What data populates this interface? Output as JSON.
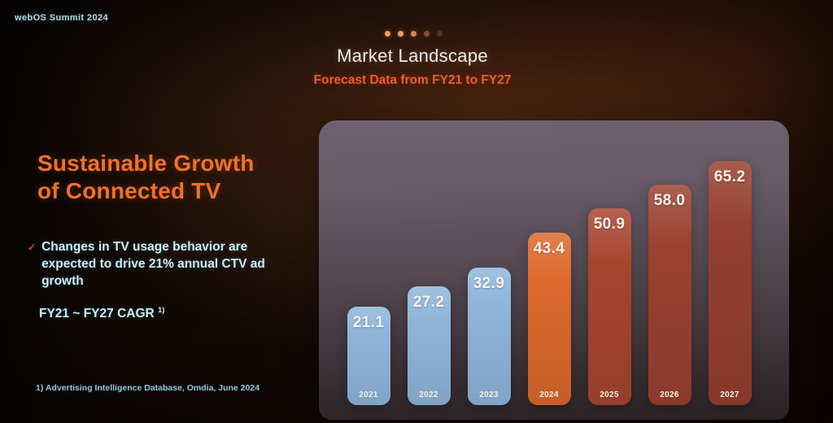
{
  "brand": "webOS Summit 2024",
  "header": {
    "title": "Market Landscape",
    "subtitle": "Forecast Data from FY21 to FY27",
    "dots": [
      1,
      1,
      0.85,
      0.45,
      0.22
    ]
  },
  "left": {
    "title_line1": "Sustainable Growth",
    "title_line2": "of Connected TV",
    "check_icon": "✓",
    "bullet_text": "Changes in TV usage behavior are expected to drive 21% annual CTV ad growth",
    "cagr_label": "FY21 ~ FY27 CAGR",
    "cagr_superscript": "1)",
    "footnote": "1) Advertising Intelligence Database, Omdia, June 2024"
  },
  "chart_data": {
    "type": "bar",
    "categories": [
      "2021",
      "2022",
      "2023",
      "2024",
      "2025",
      "2026",
      "2027"
    ],
    "values": [
      21.1,
      27.2,
      32.9,
      43.4,
      50.9,
      58.0,
      65.2
    ],
    "value_labels": [
      "21.1",
      "27.2",
      "32.9",
      "43.4",
      "50.9",
      "58.0",
      "65.2"
    ],
    "colors": [
      "#8fb5db",
      "#8fb5db",
      "#8fb5db",
      "#dc692c",
      "#a7452f",
      "#9b412f",
      "#963f2e"
    ],
    "title": "",
    "xlabel": "",
    "ylabel": "",
    "ylim": [
      0,
      70
    ],
    "grid": false,
    "legend": "none",
    "value_label_position": "inside-top",
    "category_label_position": "inside-bottom"
  },
  "colors": {
    "accent_orange": "#ef5b31",
    "headline_orange": "#ee7227",
    "body_cyan": "#c8edf9",
    "bar_blue": "#8fb5db",
    "bar_orange": "#dc692c",
    "bar_red": "#9b412f",
    "panel_top": "#6d6270"
  }
}
